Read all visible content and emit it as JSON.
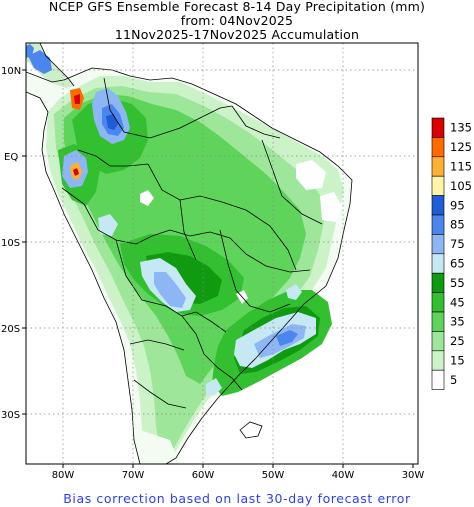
{
  "title": {
    "line1": "NCEP GFS Ensemble Forecast 8-14 Day Precipitation (mm)",
    "line2": "from: 04Nov2025",
    "line3": "11Nov2025-17Nov2025 Accumulation"
  },
  "footer": "Bias correction based on last 30-day forecast error",
  "lat_ticks": [
    "10N",
    "EQ",
    "10S",
    "20S",
    "30S"
  ],
  "lon_ticks": [
    "80W",
    "70W",
    "60W",
    "50W",
    "40W",
    "30W"
  ],
  "legend": {
    "levels": [
      "135",
      "125",
      "115",
      "105",
      "95",
      "85",
      "75",
      "65",
      "55",
      "45",
      "35",
      "25",
      "15",
      "5"
    ],
    "colors": [
      "#d90000",
      "#ff6a00",
      "#ffb030",
      "#fff5a8",
      "#1e5cd8",
      "#4b86ee",
      "#8db7f4",
      "#c5e8f4",
      "#109a10",
      "#33c030",
      "#5fd45a",
      "#9de69a",
      "#ccf2c8",
      "#ffffff"
    ]
  }
}
